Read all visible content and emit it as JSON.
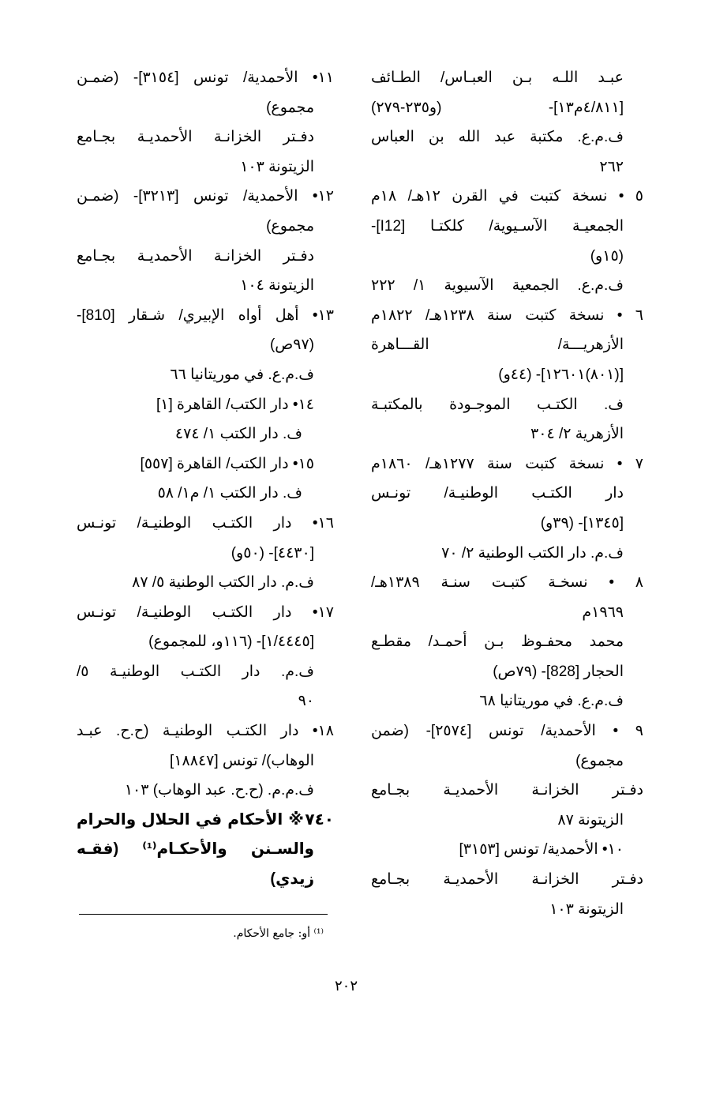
{
  "right_column": [
    "عبـد اللـه بـن العبـاس/ الطـائف",
    "[٤/٨١١م١٣]- (و٢٣٥-٢٧٩)",
    "ف.م.ع. مكتبة عبد الله بن العباس",
    "٢٦٢",
    "٥ • نسخة كتبت في القرن ١٢هـ/ ١٨م",
    "الجمعيـة الآسـيوية/ كلكتـا [I12]-",
    "(١٥و)",
    "ف.م.ع. الجمعية الآسيوية ١/ ٢٢٢",
    "٦ • نسخة كتبت سنة ١٢٣٨هـ/ ١٨٢٢م",
    "الأزهريـــة/ القـــاهرة",
    "[(٨٠١)١٢٦٠١]- (٤٤و)",
    "ف. الكتـب الموجـودة بالمكتبـة",
    "الأزهرية ٢/ ٣٠٤",
    "٧ • نسخة كتبت سنة ١٢٧٧هـ/ ١٨٦٠م",
    "دار الكتـب الوطنيـة/ تونـس",
    "[١٣٤٥]- (٣٩و)",
    "ف.م. دار الكتب الوطنية ٢/ ٧٠",
    "٨ • نسخـة كتبـت سنـة ١٣٨٩هـ/",
    "١٩٦٩م",
    "محمد محفـوظ بـن أحمـد/ مقطـع",
    "الحجار [828]- (٧٩ص)",
    "ف.م.ع. في موريتانيا ٦٨",
    "٩ • الأحمدية/ تونس [٢٥٧٤]- (ضمن",
    "مجموع)",
    "دفـتر الخزانـة الأحمديـة بجـامع",
    "الزيتونة ٨٧",
    "١٠• الأحمدية/ تونس [٣١٥٣]",
    "دفـتر الخزانـة الأحمديـة بجـامع",
    "الزيتونة ١٠٣"
  ],
  "left_column": [
    "١١• الأحمدية/ تونس [٣١٥٤]- (ضمـن",
    "مجموع)",
    "دفـتر الخزانـة الأحمديـة بجـامع",
    "الزيتونة ١٠٣",
    "١٢• الأحمدية/ تونس [٣٢١٣]- (ضمـن",
    "مجموع)",
    "دفـتر الخزانـة الأحمديـة بجـامع",
    "الزيتونة ١٠٤",
    "١٣• أهل أواه الإبيري/ شـقار [810]-",
    "(٩٧ص)",
    "ف.م.ع. في موريتانيا ٦٦",
    "١٤• دار الكتب/ القاهرة [١]",
    "ف. دار الكتب ١/ ٤٧٤",
    "١٥• دار الكتب/ القاهرة [٥٥٧]",
    "ف. دار الكتب ١/ م١/ ٥٨",
    "١٦• دار الكتـب الوطنيـة/ تونـس",
    "[٤٤٣٠]- (٥٠و)",
    "ف.م. دار الكتب الوطنية ٥/ ٨٧",
    "١٧• دار الكتـب الوطنيـة/ تونـس",
    "[١/٤٤٤٥]- (١١٦و، للمجموع)",
    "ف.م. دار الكتـب الوطنيـة ٥/",
    "٩٠",
    "١٨• دار الكتـب الوطنيـة (ح.ح. عبـد",
    "الوهاب)/ تونس [١٨٨٤٧]",
    "ف.م.م. (ح.ح. عبد الوهاب) ١٠٣",
    "٧٤٠※ الأحكام في الحلال والحرام",
    "والسـنن والأحكـام⁽¹⁾ (فقـه",
    "زيدي)"
  ],
  "footnote": "⁽¹⁾ أو: جامع الأحكام.",
  "page_number": "٢٠٢"
}
